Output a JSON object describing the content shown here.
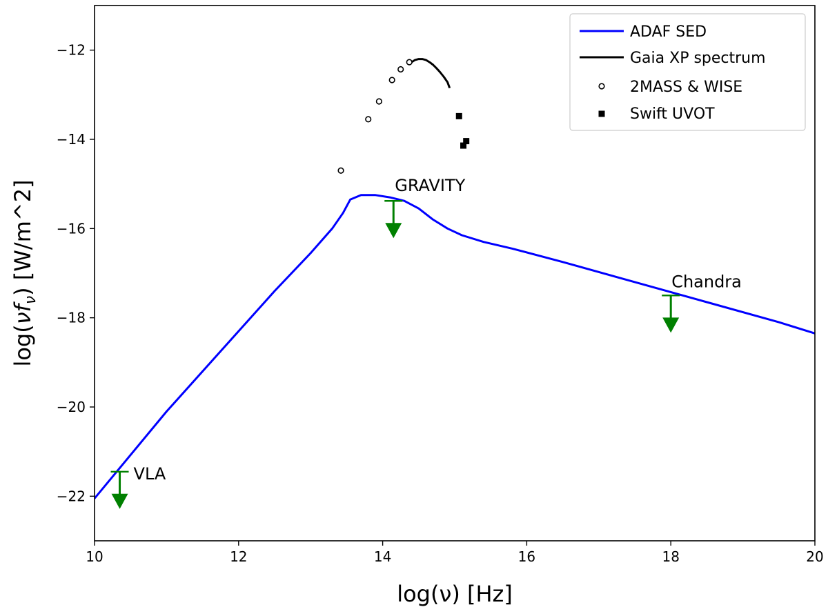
{
  "chart_data": {
    "type": "line",
    "title": "",
    "xlabel": "log(ν) [Hz]",
    "ylabel_parts": {
      "prefix": "log(",
      "nu": "ν",
      "f": "f",
      "sub": "ν",
      "suffix": ") [W/m^2]"
    },
    "xlim": [
      10,
      20
    ],
    "ylim": [
      -23,
      -11
    ],
    "x_ticks": [
      10,
      12,
      14,
      16,
      18,
      20
    ],
    "x_tick_labels": [
      "10",
      "12",
      "14",
      "16",
      "18",
      "20"
    ],
    "y_ticks": [
      -22,
      -20,
      -18,
      -16,
      -14,
      -12
    ],
    "y_tick_labels": [
      "−22",
      "−20",
      "−18",
      "−16",
      "−14",
      "−12"
    ],
    "grid": false,
    "legend_position": "top-right",
    "series": [
      {
        "name": "ADAF SED",
        "kind": "line",
        "color": "#0000ff",
        "x": [
          10.0,
          11.0,
          12.0,
          12.5,
          13.0,
          13.3,
          13.45,
          13.55,
          13.7,
          13.9,
          14.1,
          14.3,
          14.5,
          14.7,
          14.9,
          15.1,
          15.4,
          15.8,
          16.5,
          17.5,
          18.5,
          19.5,
          20.0
        ],
        "y": [
          -22.05,
          -20.1,
          -18.3,
          -17.4,
          -16.55,
          -16.0,
          -15.65,
          -15.35,
          -15.25,
          -15.25,
          -15.3,
          -15.38,
          -15.55,
          -15.8,
          -16.0,
          -16.15,
          -16.3,
          -16.45,
          -16.75,
          -17.2,
          -17.65,
          -18.1,
          -18.35
        ]
      },
      {
        "name": "Gaia XP spectrum",
        "kind": "line",
        "color": "#000000",
        "x": [
          14.4,
          14.45,
          14.5,
          14.55,
          14.6,
          14.65,
          14.7,
          14.75,
          14.8,
          14.85,
          14.9,
          14.93
        ],
        "y": [
          -12.27,
          -12.22,
          -12.2,
          -12.2,
          -12.22,
          -12.27,
          -12.33,
          -12.41,
          -12.5,
          -12.6,
          -12.72,
          -12.85
        ]
      },
      {
        "name": "2MASS & WISE",
        "kind": "scatter",
        "marker": "open-circle",
        "color": "#000000",
        "x": [
          13.42,
          13.8,
          13.95,
          14.13,
          14.25,
          14.37
        ],
        "y": [
          -14.7,
          -13.55,
          -13.15,
          -12.67,
          -12.43,
          -12.27
        ]
      },
      {
        "name": "Swift UVOT",
        "kind": "scatter",
        "marker": "filled-square",
        "color": "#000000",
        "x": [
          15.06,
          15.12,
          15.16
        ],
        "y": [
          -13.48,
          -14.14,
          -14.04
        ]
      }
    ],
    "upper_limits": [
      {
        "label": "VLA",
        "x": 10.35,
        "y": -21.45,
        "color": "#008000"
      },
      {
        "label": "GRAVITY",
        "x": 14.15,
        "y": -15.38,
        "color": "#008000"
      },
      {
        "label": "Chandra",
        "x": 18.0,
        "y": -17.5,
        "color": "#008000"
      }
    ]
  }
}
